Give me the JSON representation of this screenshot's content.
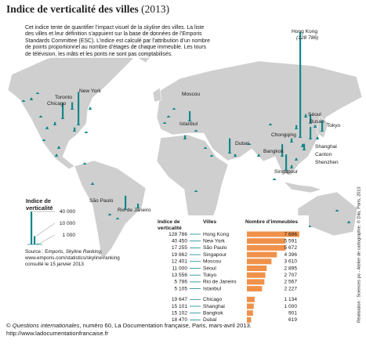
{
  "header": {
    "title": "Indice de verticalité des villes",
    "year": "(2013)"
  },
  "description": [
    "Cet indice tente de quantifier l’impact visuel de la ",
    "skyline",
    " des villes. La liste des villes et leur définition s’appuient sur la base de données de l’Emporis Standards Committee (ESC). L’indice est calculé par l’attribution d’un nombre de points proportionnel au nombre d’étages de chaque immeuble. Les tours de télévision, les mâts et les ponts ne sont pas comptabilisés."
  ],
  "map": {
    "cities": [
      {
        "name": "Hong Kong",
        "index": 128786
      },
      {
        "name": "Toronto",
        "index": 9000
      },
      {
        "name": "Chicago",
        "index": 19647
      },
      {
        "name": "New York",
        "index": 40450
      },
      {
        "name": "Moscou",
        "index": 12401
      },
      {
        "name": "Istanbul",
        "index": 5105
      },
      {
        "name": "Dubaï",
        "index": 18470
      },
      {
        "name": "Séoul",
        "index": 11000
      },
      {
        "name": "Busan",
        "index": 3000
      },
      {
        "name": "Tokyo",
        "index": 13556
      },
      {
        "name": "Chongqing",
        "index": 5000
      },
      {
        "name": "Shanghai",
        "index": 15101
      },
      {
        "name": "Canton",
        "index": 4000
      },
      {
        "name": "Shenzhen",
        "index": 8000
      },
      {
        "name": "Bangkok",
        "index": 15102
      },
      {
        "name": "Singapour",
        "index": 19862
      },
      {
        "name": "São Paulo",
        "index": 17255
      },
      {
        "name": "Rio de Janeiro",
        "index": 5786
      }
    ],
    "hong_kong_note": "(128 786)",
    "unlabeled_index": [
      3000,
      2000,
      3000,
      4000,
      5000,
      2000,
      1500,
      3000,
      2000,
      1500,
      3000,
      3000,
      2000,
      2500,
      2000,
      1500,
      2000,
      1500,
      1500,
      1500,
      1500,
      2000,
      3000,
      1500,
      2000,
      3000,
      2000,
      2000,
      5000,
      4000,
      3000,
      3000,
      4000,
      2000,
      2000,
      2500,
      1500
    ]
  },
  "legend": {
    "title_lines": [
      "Indice de",
      "verticalité"
    ],
    "ticks": [
      {
        "value": 40000,
        "label": "40 000"
      },
      {
        "value": 10000,
        "label": "10 000"
      },
      {
        "value": 1000,
        "label": "1 000"
      }
    ]
  },
  "source": [
    "Source : Emporis, ",
    "Skyline Ranking,",
    "www.emporis.com/statistics/skyline-ranking",
    "consulté le 15 janvier 2013"
  ],
  "table": {
    "index_header_lines": [
      "Indice de",
      "verticalité"
    ],
    "city_header": "Villes",
    "buildings_header": "Nombre d’immeubles",
    "groups": [
      [
        {
          "index": {
            "value": 128786,
            "label": "128 786"
          },
          "city": "Hong Kong",
          "buildings": {
            "value": 7696,
            "label": "7 696"
          }
        },
        {
          "index": {
            "value": 40450,
            "label": "40 450"
          },
          "city": "New York",
          "buildings": {
            "value": 5591,
            "label": "5 591"
          }
        },
        {
          "index": {
            "value": 17255,
            "label": "17 255"
          },
          "city": "São Paulo",
          "buildings": {
            "value": 5672,
            "label": "5 672"
          }
        },
        {
          "index": {
            "value": 19862,
            "label": "19 862"
          },
          "city": "Singapour",
          "buildings": {
            "value": 4396,
            "label": "4 396"
          }
        },
        {
          "index": {
            "value": 12401,
            "label": "12 401"
          },
          "city": "Moscou",
          "buildings": {
            "value": 3610,
            "label": "3 610"
          }
        },
        {
          "index": {
            "value": 11000,
            "label": "11 000"
          },
          "city": "Séoul",
          "buildings": {
            "value": 2895,
            "label": "2 895"
          }
        },
        {
          "index": {
            "value": 13556,
            "label": "13 556"
          },
          "city": "Tokyo",
          "buildings": {
            "value": 2707,
            "label": "2 707"
          }
        },
        {
          "index": {
            "value": 5786,
            "label": "5 786"
          },
          "city": "Rio de Janeiro",
          "buildings": {
            "value": 2567,
            "label": "2 567"
          }
        },
        {
          "index": {
            "value": 5105,
            "label": "5 105"
          },
          "city": "Istanbul",
          "buildings": {
            "value": 2227,
            "label": "2 227"
          }
        }
      ],
      [
        {
          "index": {
            "value": 19647,
            "label": "19 647"
          },
          "city": "Chicago",
          "buildings": {
            "value": 1134,
            "label": "1 134"
          }
        },
        {
          "index": {
            "value": 15101,
            "label": "15 101"
          },
          "city": "Shanghai",
          "buildings": {
            "value": 1000,
            "label": "1 000"
          }
        },
        {
          "index": {
            "value": 15102,
            "label": "15 102"
          },
          "city": "Bangkok",
          "buildings": {
            "value": 901,
            "label": "901"
          }
        },
        {
          "index": {
            "value": 18470,
            "label": "18 470"
          },
          "city": "Dubaï",
          "buildings": {
            "value": 619,
            "label": "619"
          }
        }
      ]
    ]
  },
  "credit": "Réalisation : Sciences po - Atelier de cartographie. © Dila, Paris, 2013",
  "footer": [
    "© ",
    "Questions internationales",
    ", numéro 60, La Documentation française, Paris, mars-avril 2013.",
    "http://www.ladocumentationfrancaise.fr"
  ]
}
